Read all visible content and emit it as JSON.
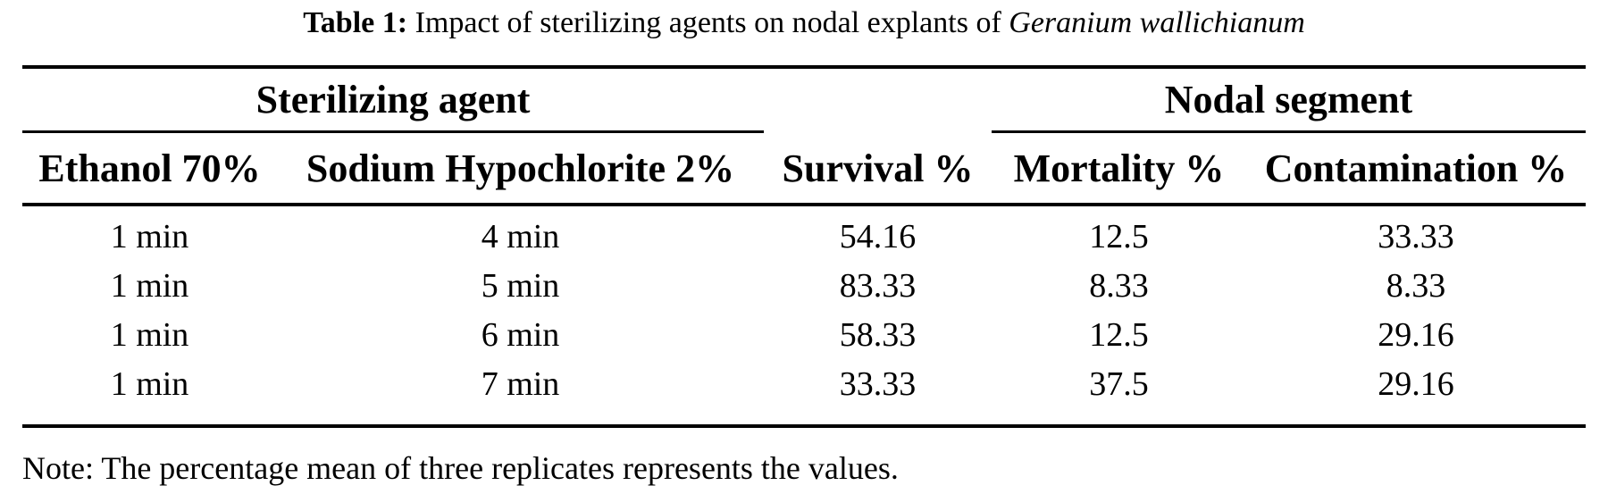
{
  "caption": {
    "label": "Table 1:",
    "text": "Impact of sterilizing agents on nodal explants of",
    "species": "Geranium wallichianum"
  },
  "table": {
    "group_headers": {
      "left": "Sterilizing agent",
      "right": "Nodal segment"
    },
    "columns": [
      "Ethanol 70%",
      "Sodium Hypochlorite 2%",
      "Survival %",
      "Mortality %",
      "Contamination %"
    ],
    "rows": [
      [
        "1 min",
        "4 min",
        "54.16",
        "12.5",
        "33.33"
      ],
      [
        "1 min",
        "5 min",
        "83.33",
        "8.33",
        "8.33"
      ],
      [
        "1 min",
        "6 min",
        "58.33",
        "12.5",
        "29.16"
      ],
      [
        "1 min",
        "7 min",
        "33.33",
        "37.5",
        "29.16"
      ]
    ]
  },
  "note": "Note: The percentage mean of three replicates represents the values.",
  "colors": {
    "background": "#ffffff",
    "text": "#000000",
    "rule": "#000000"
  }
}
